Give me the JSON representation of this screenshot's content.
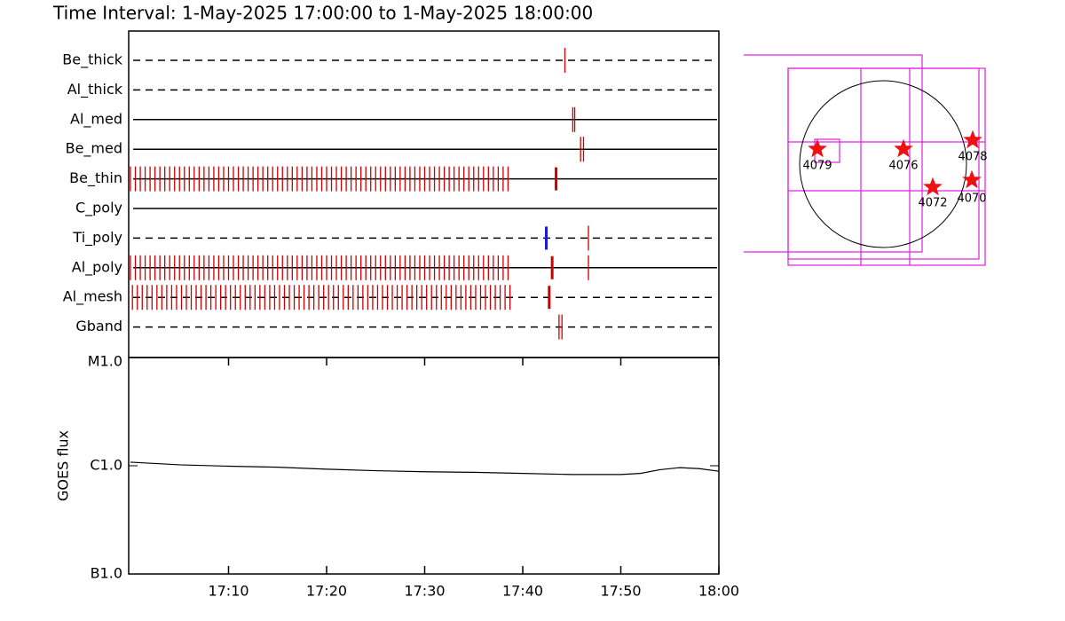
{
  "chart_data": [
    {
      "type": "timeline",
      "title": "Time Interval:  1-May-2025 17:00:00 to  1-May-2025 18:00:00",
      "xlim": [
        0,
        60
      ],
      "color": "#cc0000",
      "rows": [
        {
          "name": "Be_thick",
          "line": "dashed",
          "events": [
            44.3
          ],
          "bold_events": []
        },
        {
          "name": "Al_thick",
          "line": "dashed",
          "events": [],
          "bold_events": []
        },
        {
          "name": "Al_med",
          "line": "solid",
          "events": [
            45.1,
            45.3
          ],
          "bold_events": []
        },
        {
          "name": "Be_med",
          "line": "solid",
          "events": [
            45.9,
            46.2
          ],
          "bold_events": []
        },
        {
          "name": "Be_thin",
          "line": "solid",
          "events": [
            0,
            0.5,
            1,
            1.5,
            2,
            2.5,
            3,
            3.5,
            4,
            4.5,
            5,
            5.5,
            6,
            6.5,
            7,
            7.5,
            8,
            8.5,
            9,
            9.5,
            10,
            10.5,
            11,
            11.5,
            12,
            12.5,
            13,
            13.5,
            14,
            14.5,
            15,
            15.5,
            16,
            16.5,
            17,
            17.5,
            18,
            18.5,
            19,
            19.5,
            20,
            20.5,
            21,
            21.5,
            22,
            22.5,
            23,
            23.5,
            24,
            24.5,
            25,
            25.5,
            26,
            26.5,
            27,
            27.5,
            28,
            28.5,
            29,
            29.5,
            30,
            30.5,
            31,
            31.5,
            32,
            32.5,
            33,
            33.5,
            34,
            34.5,
            35,
            35.5,
            36,
            36.5,
            37,
            37.5,
            38,
            38.5
          ],
          "bold_events": [
            43.4
          ]
        },
        {
          "name": "C_poly",
          "line": "solid",
          "events": [],
          "bold_events": []
        },
        {
          "name": "Ti_poly",
          "line": "dashed",
          "events": [
            46.7
          ],
          "bold_events": [
            42.4
          ],
          "bold_color": "#1a1ad6"
        },
        {
          "name": "Al_poly",
          "line": "solid",
          "events": [
            0,
            0.5,
            1,
            1.5,
            2,
            2.5,
            3,
            3.5,
            4,
            4.5,
            5,
            5.5,
            6,
            6.5,
            7,
            7.5,
            8,
            8.5,
            9,
            9.5,
            10,
            10.5,
            11,
            11.5,
            12,
            12.5,
            13,
            13.5,
            14,
            14.5,
            15,
            15.5,
            16,
            16.5,
            17,
            17.5,
            18,
            18.5,
            19,
            19.5,
            20,
            20.5,
            21,
            21.5,
            22,
            22.5,
            23,
            23.5,
            24,
            24.5,
            25,
            25.5,
            26,
            26.5,
            27,
            27.5,
            28,
            28.5,
            29,
            29.5,
            30,
            30.5,
            31,
            31.5,
            32,
            32.5,
            33,
            33.5,
            34,
            34.5,
            35,
            35.5,
            36,
            36.5,
            37,
            37.5,
            38,
            38.5,
            46.7
          ],
          "bold_events": [
            43.0
          ]
        },
        {
          "name": "Al_mesh",
          "line": "dashed",
          "events": [
            0.2,
            0.7,
            1.2,
            1.7,
            2.2,
            2.7,
            3.2,
            3.7,
            4.2,
            4.7,
            5.2,
            5.7,
            6.2,
            6.7,
            7.2,
            7.7,
            8.2,
            8.7,
            9.2,
            9.7,
            10.2,
            10.7,
            11.2,
            11.7,
            12.2,
            12.7,
            13.2,
            13.7,
            14.2,
            14.7,
            15.2,
            15.7,
            16.2,
            16.7,
            17.2,
            17.7,
            18.2,
            18.7,
            19.2,
            19.7,
            20.2,
            20.7,
            21.2,
            21.7,
            22.2,
            22.7,
            23.2,
            23.7,
            24.2,
            24.7,
            25.2,
            25.7,
            26.2,
            26.7,
            27.2,
            27.7,
            28.2,
            28.7,
            29.2,
            29.7,
            30.2,
            30.7,
            31.2,
            31.7,
            32.2,
            32.7,
            33.2,
            33.7,
            34.2,
            34.7,
            35.2,
            35.7,
            36.2,
            36.7,
            37.2,
            37.7,
            38.2,
            38.7
          ],
          "bold_events": [
            42.7
          ]
        },
        {
          "name": "Gband",
          "line": "dashed",
          "events": [
            43.7,
            44.0
          ],
          "bold_events": []
        }
      ]
    },
    {
      "type": "line",
      "ylabel": "GOES flux",
      "log": true,
      "color": "#000000",
      "x": [
        0,
        5,
        10,
        15,
        20,
        25,
        30,
        35,
        40,
        45,
        50,
        52,
        54,
        56,
        58,
        60
      ],
      "values": [
        1.08e-06,
        1.02e-06,
        9.9e-07,
        9.7e-07,
        9.3e-07,
        9e-07,
        8.8e-07,
        8.7e-07,
        8.5e-07,
        8.3e-07,
        8.3e-07,
        8.5e-07,
        9.2e-07,
        9.6e-07,
        9.4e-07,
        8.9e-07
      ],
      "xlim": [
        0,
        60
      ],
      "xticks": [
        {
          "value": 10,
          "label": "17:10"
        },
        {
          "value": 20,
          "label": "17:20"
        },
        {
          "value": 30,
          "label": "17:30"
        },
        {
          "value": 40,
          "label": "17:40"
        },
        {
          "value": 50,
          "label": "17:50"
        },
        {
          "value": 60,
          "label": "18:00"
        }
      ],
      "ylim": [
        1e-07,
        1e-05
      ],
      "yticks": [
        {
          "value": 1e-05,
          "label": "M1.0"
        },
        {
          "value": 1e-06,
          "label": "C1.0"
        },
        {
          "value": 1e-07,
          "label": "B1.0"
        }
      ]
    }
  ],
  "map": {
    "regions": [
      {
        "label": "4079"
      },
      {
        "label": "4076"
      },
      {
        "label": "4078"
      },
      {
        "label": "4072"
      },
      {
        "label": "4070"
      }
    ]
  }
}
